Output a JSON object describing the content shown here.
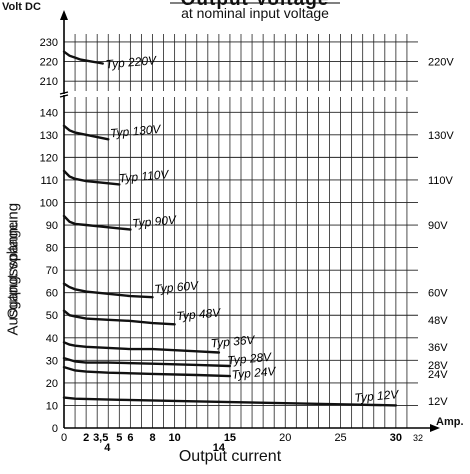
{
  "chart_data": {
    "type": "line",
    "title": "Output Voltage",
    "subtitle": "at nominal input voltage",
    "y_unit": "Volt DC",
    "x_unit": "Amp.",
    "xlabel": "Output current",
    "ylabel": "Ausgangsspannung",
    "ylabel_overlay": "Output voltage",
    "x_ticks": [
      "0",
      "2",
      "3,5",
      "4",
      "5",
      "6",
      "8",
      "10",
      "14",
      "15",
      "20",
      "25",
      "30",
      "32"
    ],
    "y_ticks_upper": [
      "210",
      "220",
      "230"
    ],
    "y_ticks_lower": [
      "0",
      "10",
      "20",
      "30",
      "40",
      "50",
      "60",
      "70",
      "80",
      "90",
      "100",
      "110",
      "120",
      "130",
      "140"
    ],
    "right_labels": [
      "220V",
      "130V",
      "110V",
      "90V",
      "60V",
      "48V",
      "36V",
      "28V",
      "24V",
      "12V"
    ],
    "xlim": [
      0,
      32
    ],
    "ylim_upper": [
      205,
      232
    ],
    "ylim_lower": [
      0,
      145
    ],
    "grid": true,
    "series": [
      {
        "name": "Typ 220V",
        "x": [
          0,
          0.5,
          1,
          1.5,
          2,
          2.5,
          3,
          3.5
        ],
        "y": [
          225,
          223,
          222,
          221,
          220.5,
          220,
          219.5,
          219
        ]
      },
      {
        "name": "Typ 130V",
        "x": [
          0,
          0.5,
          1,
          2,
          3,
          4
        ],
        "y": [
          134,
          132,
          131,
          130,
          129,
          128
        ]
      },
      {
        "name": "Typ 110V",
        "x": [
          0,
          0.5,
          1,
          2,
          3,
          4,
          5
        ],
        "y": [
          114,
          111.5,
          110.5,
          109.5,
          109,
          108.5,
          108
        ]
      },
      {
        "name": "Typ 90V",
        "x": [
          0,
          0.5,
          1,
          2,
          3,
          4,
          5,
          6
        ],
        "y": [
          94,
          91.5,
          90.5,
          90,
          89.5,
          89,
          88.5,
          88
        ]
      },
      {
        "name": "Typ 60V",
        "x": [
          0,
          0.5,
          1,
          2,
          4,
          6,
          8
        ],
        "y": [
          64,
          62.5,
          61.5,
          60.5,
          59.5,
          58.5,
          58
        ]
      },
      {
        "name": "Typ 48V",
        "x": [
          0,
          0.5,
          1,
          2,
          4,
          6,
          8,
          10
        ],
        "y": [
          52,
          50,
          49.5,
          48.5,
          48,
          47.5,
          46.5,
          46
        ]
      },
      {
        "name": "Typ 36V",
        "x": [
          0,
          0.5,
          1,
          2,
          4,
          6,
          8,
          10,
          12,
          14
        ],
        "y": [
          38,
          37,
          36.5,
          36,
          35.5,
          35,
          35,
          34.5,
          34,
          33.5
        ]
      },
      {
        "name": "Typ 28V",
        "x": [
          0,
          1,
          2,
          4,
          8,
          12,
          15
        ],
        "y": [
          31,
          29.5,
          29,
          29,
          28.5,
          28,
          27.5
        ]
      },
      {
        "name": "Typ 24V",
        "x": [
          0,
          1,
          2,
          4,
          8,
          12,
          15
        ],
        "y": [
          27,
          25.5,
          25,
          24.5,
          24,
          23.5,
          23
        ]
      },
      {
        "name": "Typ 12V",
        "x": [
          0,
          1,
          5,
          10,
          15,
          20,
          25,
          30
        ],
        "y": [
          13.5,
          13,
          12.5,
          12,
          11.5,
          11,
          10.5,
          10
        ]
      }
    ]
  }
}
